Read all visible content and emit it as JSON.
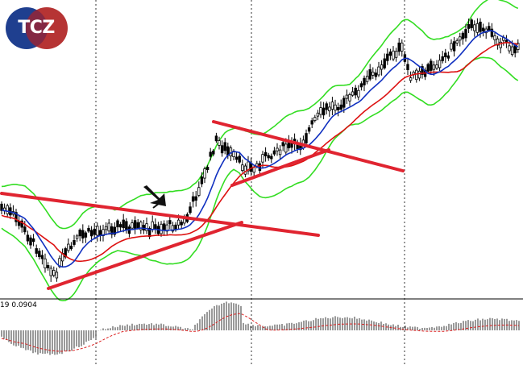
{
  "logo": {
    "text": "TCZ",
    "colors": {
      "left": "#1f3f8f",
      "right": "#b02323"
    }
  },
  "oscillator": {
    "label": "19 0.0904"
  },
  "colors": {
    "background": "#ffffff",
    "candle": "#000000",
    "bollinger": "#33dd22",
    "ma_fast": "#1030c0",
    "ma_slow": "#dd1111",
    "trendline": "#e02430",
    "separator": "#000000",
    "grid": "#000000",
    "osc_bars": "#000000",
    "osc_signal": "#dd2222"
  },
  "annotation": {
    "icon": "arrow-cursor-icon"
  }
}
